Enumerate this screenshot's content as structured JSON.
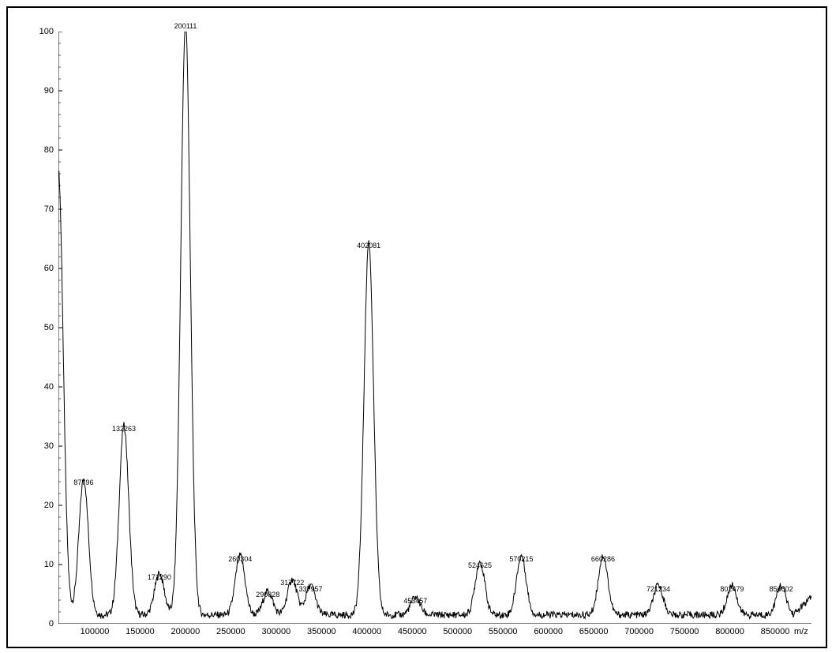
{
  "spectrum": {
    "type": "mass-spectrum-line",
    "xlim": [
      60000,
      890000
    ],
    "ylim": [
      0,
      100
    ],
    "ytick_step": 10,
    "xtick_step": 50000,
    "xtick_start": 100000,
    "xtick_end": 850000,
    "xaxis_title": "m/z",
    "background_color": "#ffffff",
    "line_color": "#000000",
    "line_width": 1,
    "tick_font_size": 11,
    "peak_label_font_size": 9,
    "frame_color": "#000000",
    "peaks": [
      {
        "mz": 60000,
        "intensity": 75,
        "label": ""
      },
      {
        "mz": 87796,
        "intensity": 23,
        "label": "87796"
      },
      {
        "mz": 132263,
        "intensity": 32,
        "label": "132263"
      },
      {
        "mz": 171290,
        "intensity": 7,
        "label": "171290"
      },
      {
        "mz": 200111,
        "intensity": 100,
        "label": "200111"
      },
      {
        "mz": 260304,
        "intensity": 10,
        "label": "260304"
      },
      {
        "mz": 290828,
        "intensity": 4,
        "label": "290828"
      },
      {
        "mz": 317722,
        "intensity": 6,
        "label": "317722"
      },
      {
        "mz": 337957,
        "intensity": 5,
        "label": "337957"
      },
      {
        "mz": 402081,
        "intensity": 63,
        "label": "402081"
      },
      {
        "mz": 453457,
        "intensity": 3,
        "label": "453457"
      },
      {
        "mz": 524625,
        "intensity": 9,
        "label": "524625"
      },
      {
        "mz": 570215,
        "intensity": 10,
        "label": "570215"
      },
      {
        "mz": 660286,
        "intensity": 10,
        "label": "660286"
      },
      {
        "mz": 721234,
        "intensity": 5,
        "label": "721234"
      },
      {
        "mz": 802479,
        "intensity": 5,
        "label": "802479"
      },
      {
        "mz": 856602,
        "intensity": 5,
        "label": "856602"
      }
    ],
    "baseline_noise": 1.5,
    "half_width": 11000
  }
}
